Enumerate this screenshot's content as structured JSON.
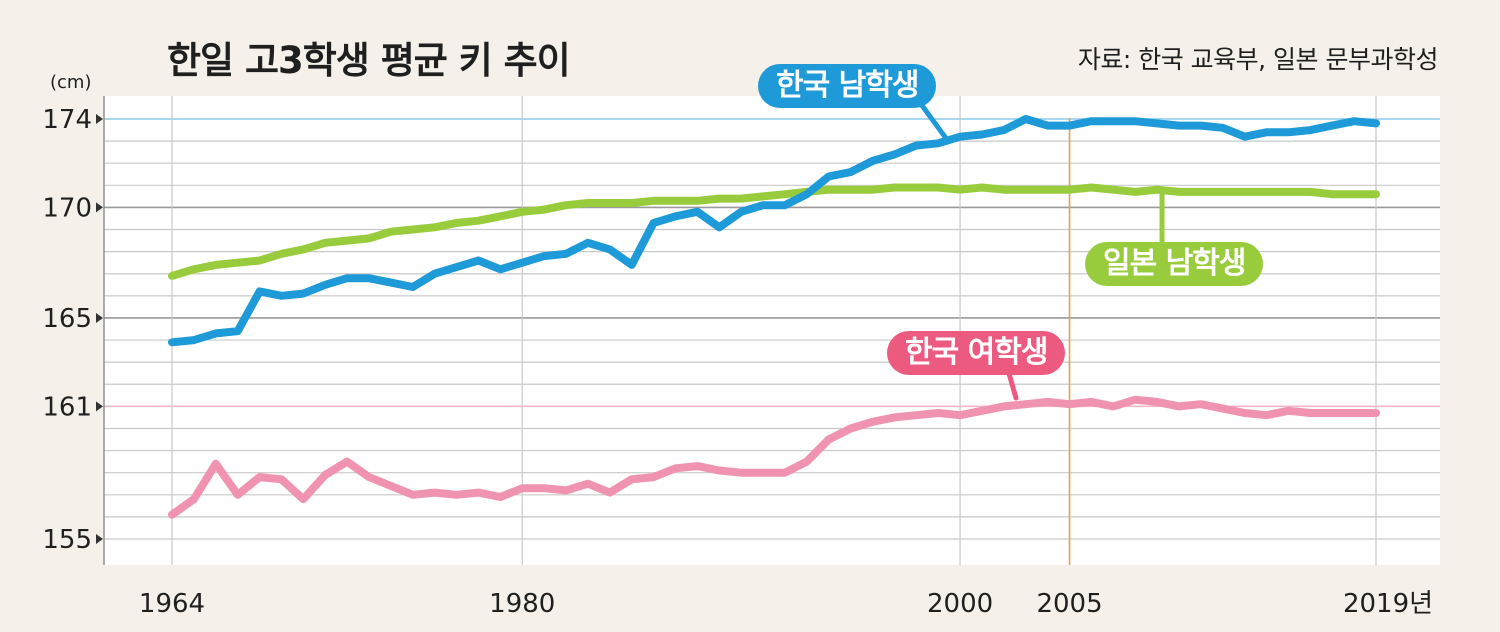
{
  "chart_data": {
    "type": "line",
    "title": "한일 고3학생 평균 키 추이",
    "source": "자료: 한국 교육부, 일본 문부과학성",
    "yunit": "(cm)",
    "xlim": [
      1964,
      2019
    ],
    "ylim": [
      155,
      174
    ],
    "yticks": [
      {
        "value": 174,
        "label": "174"
      },
      {
        "value": 170,
        "label": "170"
      },
      {
        "value": 165,
        "label": "165"
      },
      {
        "value": 161,
        "label": "161"
      },
      {
        "value": 155,
        "label": "155"
      }
    ],
    "xticks": [
      {
        "value": 1964,
        "label": "1964"
      },
      {
        "value": 1980,
        "label": "1980"
      },
      {
        "value": 2000,
        "label": "2000"
      },
      {
        "value": 2005,
        "label": "2005"
      },
      {
        "value": 2019,
        "label": "2019년"
      }
    ],
    "series": [
      {
        "name": "한국 남학생",
        "color": "#1e9ad9",
        "x": [
          1964,
          1965,
          1966,
          1967,
          1968,
          1969,
          1970,
          1971,
          1972,
          1973,
          1974,
          1975,
          1976,
          1977,
          1978,
          1979,
          1980,
          1981,
          1982,
          1983,
          1984,
          1985,
          1986,
          1987,
          1988,
          1989,
          1990,
          1991,
          1992,
          1993,
          1994,
          1995,
          1996,
          1997,
          1998,
          1999,
          2000,
          2001,
          2002,
          2003,
          2004,
          2005,
          2006,
          2007,
          2008,
          2009,
          2010,
          2011,
          2012,
          2013,
          2014,
          2015,
          2016,
          2017,
          2018,
          2019
        ],
        "values": [
          163.9,
          164.0,
          164.3,
          164.4,
          166.2,
          166.0,
          166.1,
          166.5,
          166.8,
          166.8,
          166.6,
          166.4,
          167.0,
          167.3,
          167.6,
          167.2,
          167.5,
          167.8,
          167.9,
          168.4,
          168.1,
          167.4,
          169.3,
          169.6,
          169.8,
          169.1,
          169.8,
          170.1,
          170.1,
          170.6,
          171.4,
          171.6,
          172.1,
          172.4,
          172.8,
          172.9,
          173.2,
          173.3,
          173.5,
          174.0,
          173.7,
          173.7,
          173.9,
          173.9,
          173.9,
          173.8,
          173.7,
          173.7,
          173.6,
          173.2,
          173.4,
          173.4,
          173.5,
          173.7,
          173.9,
          173.8
        ]
      },
      {
        "name": "일본 남학생",
        "color": "#99cc3d",
        "x": [
          1964,
          1965,
          1966,
          1967,
          1968,
          1969,
          1970,
          1971,
          1972,
          1973,
          1974,
          1975,
          1976,
          1977,
          1978,
          1979,
          1980,
          1981,
          1982,
          1983,
          1984,
          1985,
          1986,
          1987,
          1988,
          1989,
          1990,
          1991,
          1992,
          1993,
          1994,
          1995,
          1996,
          1997,
          1998,
          1999,
          2000,
          2001,
          2002,
          2003,
          2004,
          2005,
          2006,
          2007,
          2008,
          2009,
          2010,
          2011,
          2012,
          2013,
          2014,
          2015,
          2016,
          2017,
          2018,
          2019
        ],
        "values": [
          166.9,
          167.2,
          167.4,
          167.5,
          167.6,
          167.9,
          168.1,
          168.4,
          168.5,
          168.6,
          168.9,
          169.0,
          169.1,
          169.3,
          169.4,
          169.6,
          169.8,
          169.9,
          170.1,
          170.2,
          170.2,
          170.2,
          170.3,
          170.3,
          170.3,
          170.4,
          170.4,
          170.5,
          170.6,
          170.7,
          170.8,
          170.8,
          170.8,
          170.9,
          170.9,
          170.9,
          170.8,
          170.9,
          170.8,
          170.8,
          170.8,
          170.8,
          170.9,
          170.8,
          170.7,
          170.8,
          170.7,
          170.7,
          170.7,
          170.7,
          170.7,
          170.7,
          170.7,
          170.6,
          170.6,
          170.6
        ]
      },
      {
        "name": "한국 여학생",
        "color": "#f093b0",
        "x": [
          1964,
          1965,
          1966,
          1967,
          1968,
          1969,
          1970,
          1971,
          1972,
          1973,
          1974,
          1975,
          1976,
          1977,
          1978,
          1979,
          1980,
          1981,
          1982,
          1983,
          1984,
          1985,
          1986,
          1987,
          1988,
          1989,
          1990,
          1991,
          1992,
          1993,
          1994,
          1995,
          1996,
          1997,
          1998,
          1999,
          2000,
          2001,
          2002,
          2003,
          2004,
          2005,
          2006,
          2007,
          2008,
          2009,
          2010,
          2011,
          2012,
          2013,
          2014,
          2015,
          2016,
          2017,
          2018,
          2019
        ],
        "values": [
          156.1,
          156.8,
          158.4,
          157.0,
          157.8,
          157.7,
          156.8,
          157.9,
          158.5,
          157.8,
          157.4,
          157.0,
          157.1,
          157.0,
          157.1,
          156.9,
          157.3,
          157.3,
          157.2,
          157.5,
          157.1,
          157.7,
          157.8,
          158.2,
          158.3,
          158.1,
          158.0,
          158.0,
          158.0,
          158.5,
          159.5,
          160.0,
          160.3,
          160.5,
          160.6,
          160.7,
          160.6,
          160.8,
          161.0,
          161.1,
          161.2,
          161.1,
          161.2,
          161.0,
          161.3,
          161.2,
          161.0,
          161.1,
          160.9,
          160.7,
          160.6,
          160.8,
          160.7,
          160.7,
          160.7,
          160.7
        ]
      }
    ],
    "labels": {
      "korea_male": "한국 남학생",
      "japan_male": "일본 남학생",
      "korea_female": "한국 여학생"
    },
    "highlight_year": 2005,
    "highlight_color": "#e8a04a"
  }
}
